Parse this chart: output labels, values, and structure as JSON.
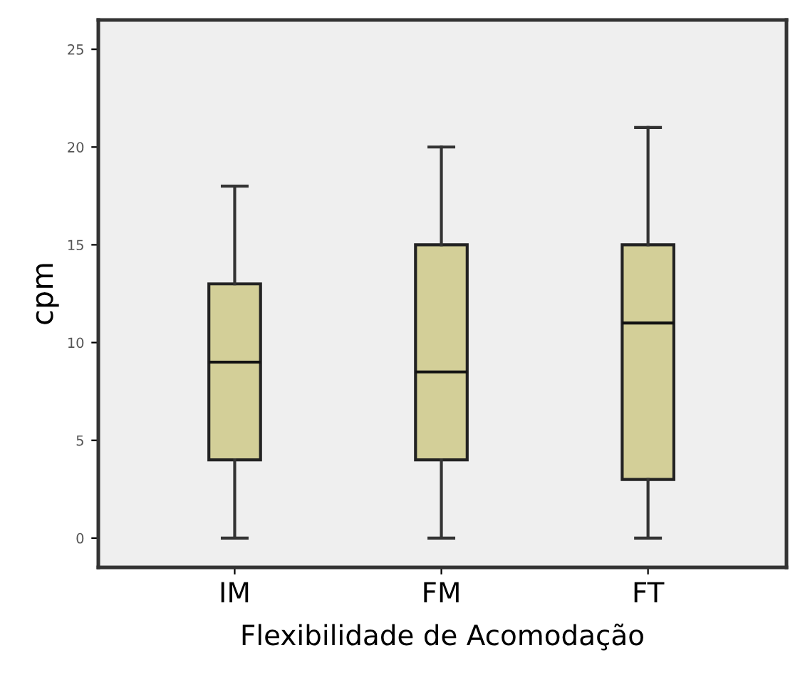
{
  "chart_data": {
    "type": "box",
    "xlabel": "Flexibilidade de Acomodação",
    "ylabel": "cpm",
    "categories": [
      "IM",
      "FM",
      "FT"
    ],
    "boxes": [
      {
        "low": 0,
        "q1": 4,
        "median": 9,
        "q3": 13,
        "high": 18
      },
      {
        "low": 0,
        "q1": 4,
        "median": 8.5,
        "q3": 15,
        "high": 20
      },
      {
        "low": 0,
        "q1": 3,
        "median": 11,
        "q3": 15,
        "high": 21
      }
    ],
    "color": "#d3cf98",
    "ylim": [
      -1.5,
      26.5
    ],
    "yticks": [
      0,
      5,
      10,
      15,
      20,
      25
    ],
    "grid": false
  }
}
